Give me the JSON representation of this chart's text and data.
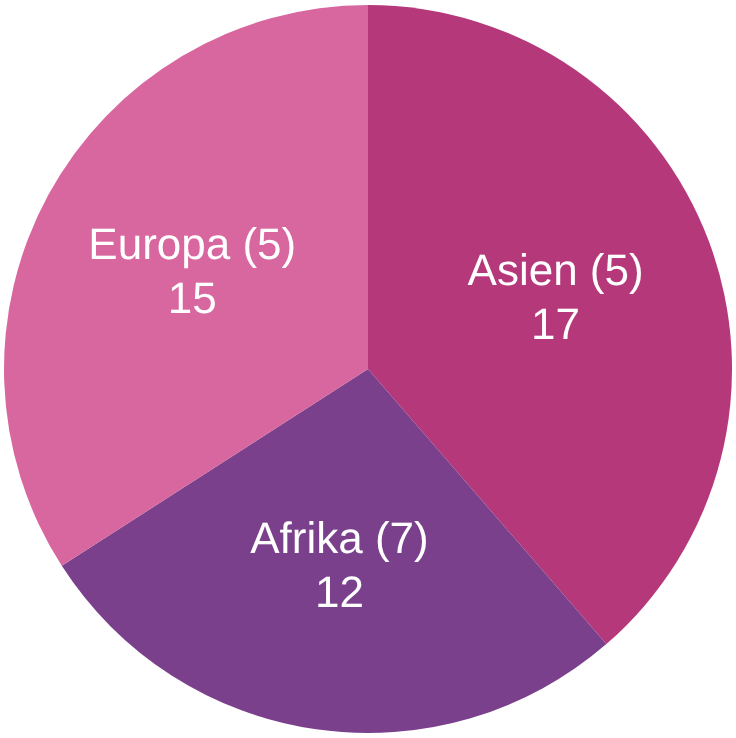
{
  "chart_data": {
    "type": "pie",
    "categories": [
      "Asien (5)",
      "Afrika (7)",
      "Europa (5)"
    ],
    "values": [
      17,
      12,
      15
    ],
    "colors": [
      "#b5387b",
      "#7a408c",
      "#d8669f"
    ],
    "data_labels": true,
    "legend": false
  }
}
